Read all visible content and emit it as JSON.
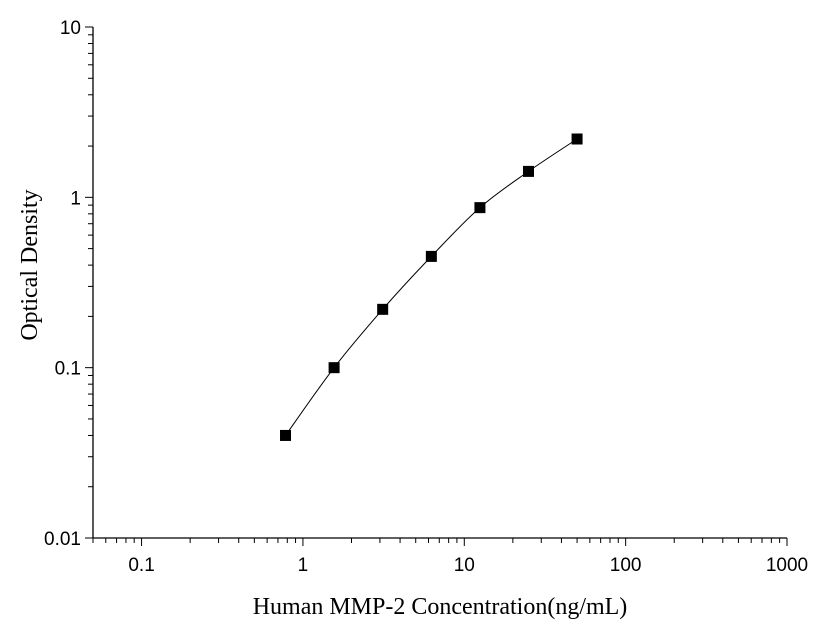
{
  "chart_data": {
    "type": "scatter",
    "xlabel": "Human MMP-2 Concentration(ng/mL)",
    "ylabel": "Optical Density",
    "xscale": "log",
    "yscale": "log",
    "xlim": [
      0.05,
      1000
    ],
    "ylim": [
      0.01,
      10
    ],
    "xticks": [
      "0.1",
      "1",
      "10",
      "100",
      "1000"
    ],
    "yticks": [
      "0.01",
      "0.1",
      "1",
      "10"
    ],
    "grid": false,
    "legend": "none",
    "series": [
      {
        "x": [
          0.78,
          1.56,
          3.12,
          6.25,
          12.5,
          25,
          50
        ],
        "y": [
          0.04,
          0.1,
          0.22,
          0.45,
          0.87,
          1.42,
          2.2
        ],
        "marker": "square",
        "line": "smooth",
        "color": "#000000"
      }
    ]
  }
}
